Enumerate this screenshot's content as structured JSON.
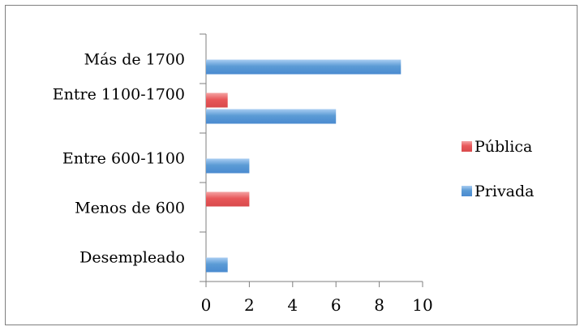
{
  "chart_data": {
    "type": "bar",
    "orientation": "horizontal",
    "categories": [
      "Más de 1700",
      "Entre 1100-1700",
      "Entre 600-1100",
      "Menos de 600",
      "Desempleado"
    ],
    "series": [
      {
        "name": "Pública",
        "values": [
          0,
          1,
          0,
          2,
          0
        ],
        "color": "#e8585a"
      },
      {
        "name": "Privada",
        "values": [
          9,
          6,
          2,
          0,
          1
        ],
        "color": "#5b9bd5"
      }
    ],
    "x_ticks": [
      "0",
      "2",
      "4",
      "6",
      "8",
      "10"
    ],
    "xlim": [
      0,
      10
    ],
    "grid": false,
    "legend_position": "right"
  }
}
